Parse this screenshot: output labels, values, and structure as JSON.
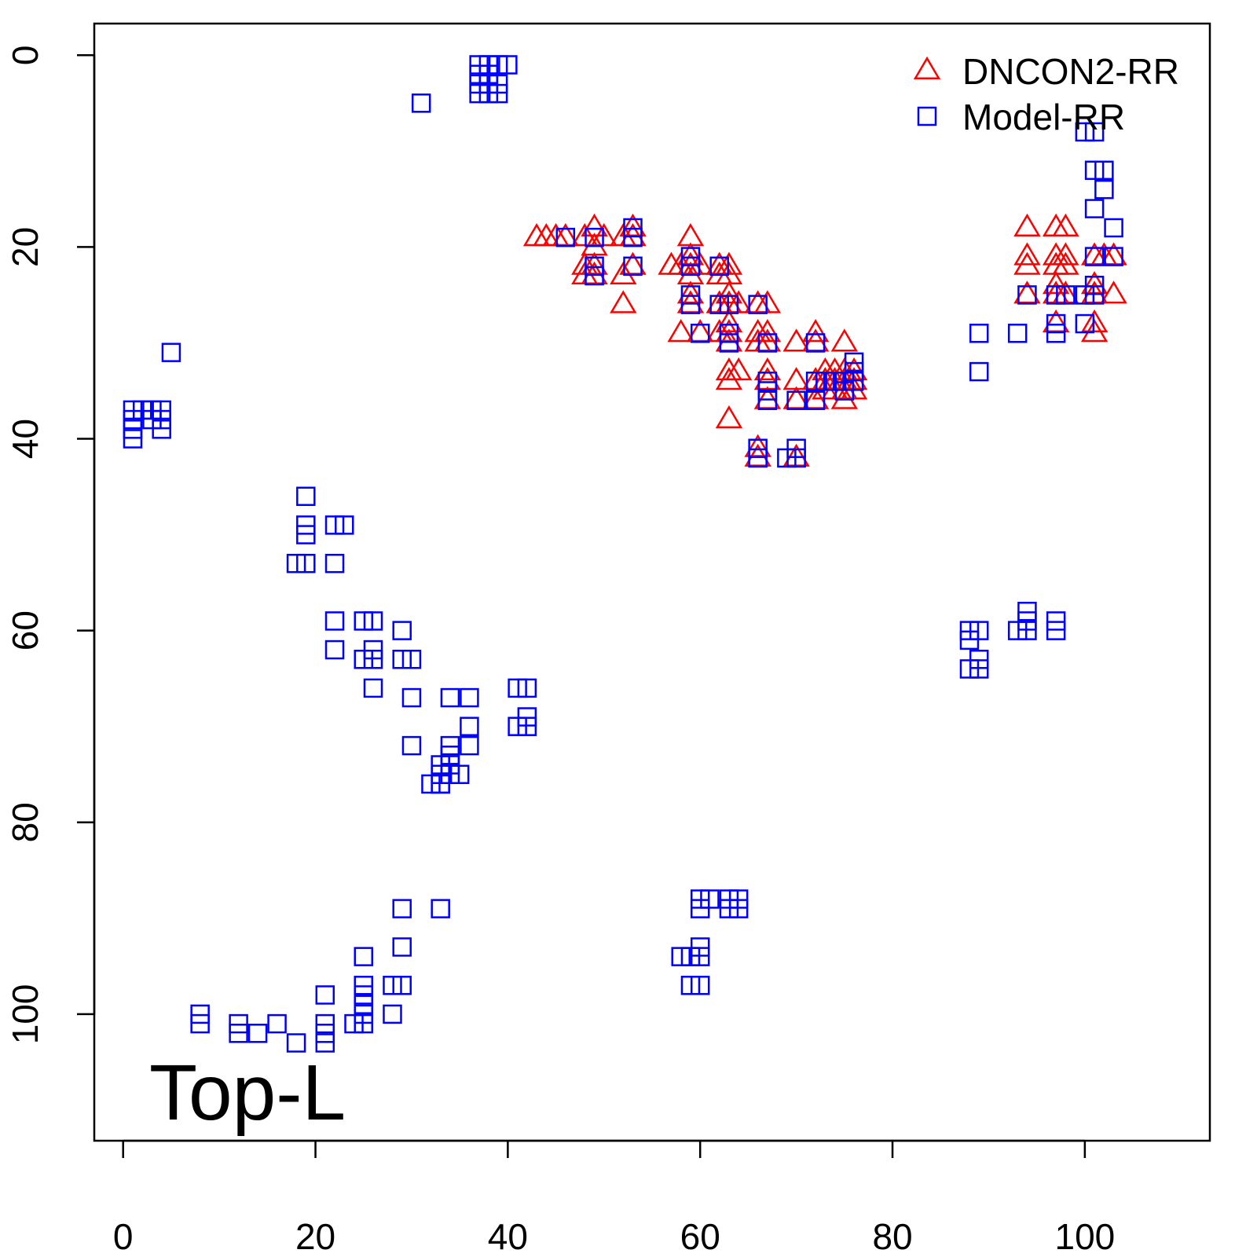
{
  "chart_data": {
    "type": "scatter",
    "title": "",
    "xlabel": "",
    "ylabel": "",
    "annotation": "Top-L",
    "xlim": [
      -3,
      113
    ],
    "ylim": [
      -3.3,
      113.2
    ],
    "y_inverted": true,
    "x_ticks": [
      0,
      20,
      40,
      60,
      80,
      100
    ],
    "y_ticks": [
      0,
      20,
      40,
      60,
      80,
      100
    ],
    "grid": false,
    "legend_position": "top-right",
    "series": [
      {
        "name": "DNCON2-RR",
        "marker": "triangle",
        "color": "#ff0000",
        "points": [
          [
            43,
            19
          ],
          [
            44,
            19
          ],
          [
            45,
            19
          ],
          [
            46,
            19
          ],
          [
            48,
            19
          ],
          [
            49,
            18
          ],
          [
            49,
            20
          ],
          [
            48,
            22
          ],
          [
            48,
            23
          ],
          [
            49,
            22
          ],
          [
            49,
            23
          ],
          [
            50,
            19
          ],
          [
            52,
            19
          ],
          [
            52,
            23
          ],
          [
            52,
            26
          ],
          [
            53,
            18
          ],
          [
            53,
            19
          ],
          [
            53,
            22
          ],
          [
            57,
            22
          ],
          [
            58,
            22
          ],
          [
            59,
            19
          ],
          [
            59,
            21
          ],
          [
            59,
            22
          ],
          [
            59,
            23
          ],
          [
            59,
            25
          ],
          [
            59,
            26
          ],
          [
            58,
            29
          ],
          [
            60,
            29
          ],
          [
            60,
            22
          ],
          [
            62,
            22
          ],
          [
            62,
            23
          ],
          [
            62,
            26
          ],
          [
            62,
            29
          ],
          [
            63,
            22
          ],
          [
            63,
            23
          ],
          [
            63,
            25
          ],
          [
            63,
            26
          ],
          [
            63,
            28
          ],
          [
            63,
            29
          ],
          [
            63,
            30
          ],
          [
            63,
            33
          ],
          [
            63,
            34
          ],
          [
            63,
            38
          ],
          [
            64,
            26
          ],
          [
            64,
            33
          ],
          [
            66,
            26
          ],
          [
            66,
            29
          ],
          [
            66,
            30
          ],
          [
            66,
            41
          ],
          [
            66,
            42
          ],
          [
            67,
            26
          ],
          [
            67,
            29
          ],
          [
            67,
            30
          ],
          [
            67,
            33
          ],
          [
            67,
            34
          ],
          [
            67,
            36
          ],
          [
            70,
            30
          ],
          [
            70,
            34
          ],
          [
            70,
            36
          ],
          [
            70,
            42
          ],
          [
            72,
            29
          ],
          [
            72,
            30
          ],
          [
            72,
            34
          ],
          [
            72,
            36
          ],
          [
            73,
            33
          ],
          [
            73,
            34
          ],
          [
            73,
            35
          ],
          [
            74,
            33
          ],
          [
            74,
            34
          ],
          [
            74,
            35
          ],
          [
            75,
            30
          ],
          [
            75,
            33
          ],
          [
            75,
            34
          ],
          [
            75,
            35
          ],
          [
            75,
            36
          ],
          [
            76,
            33
          ],
          [
            76,
            34
          ],
          [
            76,
            35
          ],
          [
            94,
            18
          ],
          [
            94,
            21
          ],
          [
            94,
            22
          ],
          [
            94,
            25
          ],
          [
            97,
            18
          ],
          [
            97,
            21
          ],
          [
            97,
            22
          ],
          [
            97,
            24
          ],
          [
            97,
            25
          ],
          [
            97,
            28
          ],
          [
            98,
            18
          ],
          [
            98,
            21
          ],
          [
            98,
            22
          ],
          [
            98,
            25
          ],
          [
            101,
            21
          ],
          [
            101,
            24
          ],
          [
            101,
            25
          ],
          [
            101,
            28
          ],
          [
            101,
            29
          ],
          [
            102,
            21
          ],
          [
            103,
            21
          ],
          [
            103,
            25
          ]
        ]
      },
      {
        "name": "Model-RR",
        "marker": "square",
        "color": "#0000ff",
        "points": [
          [
            37,
            1
          ],
          [
            37,
            2
          ],
          [
            37,
            3
          ],
          [
            37,
            4
          ],
          [
            38,
            1
          ],
          [
            38,
            2
          ],
          [
            38,
            3
          ],
          [
            38,
            4
          ],
          [
            39,
            1
          ],
          [
            39,
            3
          ],
          [
            39,
            4
          ],
          [
            40,
            1
          ],
          [
            31,
            5
          ],
          [
            5,
            31
          ],
          [
            1,
            37
          ],
          [
            1,
            38
          ],
          [
            1,
            39
          ],
          [
            1,
            40
          ],
          [
            2,
            37
          ],
          [
            3,
            37
          ],
          [
            3,
            38
          ],
          [
            4,
            37
          ],
          [
            4,
            38
          ],
          [
            4,
            39
          ],
          [
            19,
            46
          ],
          [
            19,
            49
          ],
          [
            19,
            50
          ],
          [
            18,
            53
          ],
          [
            19,
            53
          ],
          [
            22,
            49
          ],
          [
            23,
            49
          ],
          [
            22,
            53
          ],
          [
            22,
            59
          ],
          [
            22,
            62
          ],
          [
            25,
            59
          ],
          [
            26,
            59
          ],
          [
            25,
            63
          ],
          [
            26,
            62
          ],
          [
            26,
            63
          ],
          [
            26,
            66
          ],
          [
            29,
            60
          ],
          [
            29,
            63
          ],
          [
            30,
            63
          ],
          [
            30,
            67
          ],
          [
            30,
            72
          ],
          [
            34,
            67
          ],
          [
            36,
            67
          ],
          [
            36,
            70
          ],
          [
            36,
            72
          ],
          [
            34,
            72
          ],
          [
            34,
            73
          ],
          [
            34,
            74
          ],
          [
            33,
            74
          ],
          [
            33,
            75
          ],
          [
            34,
            75
          ],
          [
            35,
            75
          ],
          [
            33,
            76
          ],
          [
            32,
            76
          ],
          [
            33,
            76
          ],
          [
            41,
            66
          ],
          [
            42,
            66
          ],
          [
            41,
            70
          ],
          [
            42,
            69
          ],
          [
            42,
            70
          ],
          [
            8,
            100
          ],
          [
            8,
            101
          ],
          [
            12,
            101
          ],
          [
            12,
            102
          ],
          [
            14,
            102
          ],
          [
            16,
            101
          ],
          [
            18,
            103
          ],
          [
            21,
            98
          ],
          [
            21,
            101
          ],
          [
            21,
            102
          ],
          [
            21,
            103
          ],
          [
            24,
            101
          ],
          [
            25,
            94
          ],
          [
            25,
            97
          ],
          [
            25,
            98
          ],
          [
            25,
            99
          ],
          [
            25,
            100
          ],
          [
            25,
            101
          ],
          [
            28,
            97
          ],
          [
            29,
            97
          ],
          [
            28,
            100
          ],
          [
            29,
            89
          ],
          [
            29,
            93
          ],
          [
            33,
            89
          ],
          [
            46,
            19
          ],
          [
            49,
            19
          ],
          [
            49,
            22
          ],
          [
            49,
            23
          ],
          [
            53,
            18
          ],
          [
            53,
            19
          ],
          [
            53,
            22
          ],
          [
            59,
            21
          ],
          [
            59,
            22
          ],
          [
            59,
            25
          ],
          [
            59,
            26
          ],
          [
            60,
            29
          ],
          [
            62,
            22
          ],
          [
            62,
            26
          ],
          [
            63,
            26
          ],
          [
            63,
            29
          ],
          [
            63,
            30
          ],
          [
            66,
            26
          ],
          [
            66,
            41
          ],
          [
            66,
            42
          ],
          [
            67,
            30
          ],
          [
            67,
            34
          ],
          [
            67,
            35
          ],
          [
            67,
            36
          ],
          [
            69,
            42
          ],
          [
            70,
            36
          ],
          [
            70,
            41
          ],
          [
            70,
            42
          ],
          [
            72,
            30
          ],
          [
            72,
            34
          ],
          [
            72,
            36
          ],
          [
            73,
            34
          ],
          [
            74,
            34
          ],
          [
            75,
            34
          ],
          [
            75,
            35
          ],
          [
            76,
            32
          ],
          [
            76,
            33
          ],
          [
            76,
            34
          ],
          [
            58,
            94
          ],
          [
            59,
            94
          ],
          [
            60,
            93
          ],
          [
            60,
            94
          ],
          [
            59,
            97
          ],
          [
            60,
            97
          ],
          [
            60,
            88
          ],
          [
            60,
            89
          ],
          [
            61,
            88
          ],
          [
            63,
            88
          ],
          [
            63,
            89
          ],
          [
            64,
            88
          ],
          [
            64,
            89
          ],
          [
            88,
            60
          ],
          [
            88,
            61
          ],
          [
            89,
            60
          ],
          [
            89,
            63
          ],
          [
            88,
            64
          ],
          [
            89,
            64
          ],
          [
            93,
            60
          ],
          [
            94,
            58
          ],
          [
            94,
            59
          ],
          [
            94,
            60
          ],
          [
            97,
            59
          ],
          [
            97,
            60
          ],
          [
            89,
            29
          ],
          [
            89,
            33
          ],
          [
            93,
            29
          ],
          [
            94,
            25
          ],
          [
            97,
            25
          ],
          [
            97,
            28
          ],
          [
            97,
            29
          ],
          [
            98,
            25
          ],
          [
            100,
            25
          ],
          [
            100,
            28
          ],
          [
            100,
            8
          ],
          [
            101,
            8
          ],
          [
            101,
            12
          ],
          [
            101,
            16
          ],
          [
            101,
            21
          ],
          [
            101,
            24
          ],
          [
            101,
            25
          ],
          [
            102,
            12
          ],
          [
            102,
            14
          ],
          [
            103,
            18
          ],
          [
            103,
            21
          ]
        ]
      }
    ]
  }
}
